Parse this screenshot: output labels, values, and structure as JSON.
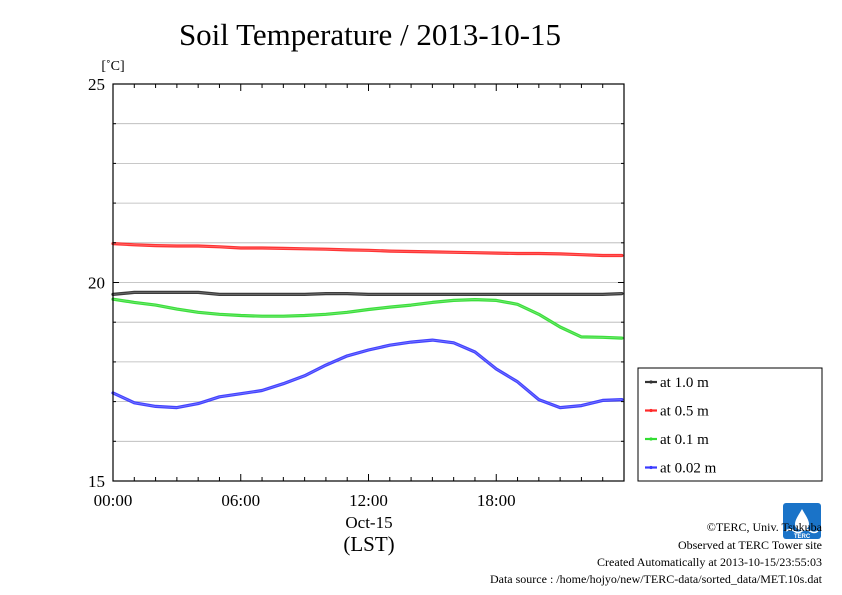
{
  "chart_data": {
    "type": "line",
    "title": "Soil Temperature / 2013-10-15",
    "ylabel": "[˚C]",
    "xlabel": "(LST)",
    "date_label": "Oct-15",
    "ylim": [
      15,
      25
    ],
    "yticks": [
      15,
      20,
      25
    ],
    "ytick_labels": [
      "15",
      "20",
      "25"
    ],
    "xlim_hours": [
      0,
      24
    ],
    "xticks": [
      "00:00",
      "06:00",
      "12:00",
      "18:00"
    ],
    "grid": true,
    "legend_position": "right-bottom",
    "series": [
      {
        "name": "at 1.0 m",
        "color": "#333333",
        "x": [
          0,
          1,
          2,
          3,
          4,
          5,
          6,
          7,
          8,
          9,
          10,
          11,
          12,
          13,
          14,
          15,
          16,
          17,
          18,
          19,
          20,
          21,
          22,
          23,
          23.9
        ],
        "y": [
          19.7,
          19.75,
          19.75,
          19.75,
          19.75,
          19.7,
          19.7,
          19.7,
          19.7,
          19.7,
          19.72,
          19.72,
          19.7,
          19.7,
          19.7,
          19.7,
          19.7,
          19.7,
          19.7,
          19.7,
          19.7,
          19.7,
          19.7,
          19.7,
          19.72
        ]
      },
      {
        "name": "at 0.5 m",
        "color": "#ff2a2a",
        "x": [
          0,
          1,
          2,
          3,
          4,
          5,
          6,
          7,
          8,
          9,
          10,
          11,
          12,
          13,
          14,
          15,
          16,
          17,
          18,
          19,
          20,
          21,
          22,
          23,
          23.9
        ],
        "y": [
          20.98,
          20.95,
          20.93,
          20.92,
          20.92,
          20.9,
          20.87,
          20.87,
          20.86,
          20.85,
          20.84,
          20.82,
          20.81,
          20.79,
          20.78,
          20.77,
          20.76,
          20.75,
          20.74,
          20.73,
          20.73,
          20.72,
          20.7,
          20.68,
          20.68
        ]
      },
      {
        "name": "at 0.1 m",
        "color": "#33dd33",
        "x": [
          0,
          1,
          2,
          3,
          4,
          5,
          6,
          7,
          8,
          9,
          10,
          11,
          12,
          13,
          14,
          15,
          16,
          17,
          18,
          19,
          20,
          21,
          22,
          23,
          23.9
        ],
        "y": [
          19.58,
          19.5,
          19.43,
          19.33,
          19.25,
          19.2,
          19.17,
          19.15,
          19.15,
          19.17,
          19.2,
          19.25,
          19.32,
          19.38,
          19.43,
          19.5,
          19.55,
          19.57,
          19.55,
          19.45,
          19.2,
          18.88,
          18.63,
          18.62,
          18.6
        ]
      },
      {
        "name": "at 0.02 m",
        "color": "#3a3aff",
        "x": [
          0,
          1,
          2,
          3,
          4,
          5,
          6,
          7,
          8,
          9,
          10,
          11,
          12,
          13,
          14,
          15,
          16,
          17,
          18,
          19,
          20,
          21,
          22,
          23,
          23.9
        ],
        "y": [
          17.22,
          16.97,
          16.88,
          16.85,
          16.95,
          17.12,
          17.2,
          17.28,
          17.45,
          17.65,
          17.92,
          18.15,
          18.3,
          18.42,
          18.5,
          18.55,
          18.48,
          18.25,
          17.82,
          17.5,
          17.05,
          16.85,
          16.9,
          17.03,
          17.05
        ]
      }
    ]
  },
  "credits": {
    "copyright": "©TERC, Univ. Tsukuba",
    "observed": "Observed at TERC Tower site",
    "created": "Created Automatically at 2013-10-15/23:55:03",
    "source": "Data source : /home/hojyo/new/TERC-data/sorted_data/MET.10s.dat"
  },
  "logo": {
    "name": "terc-logo-icon",
    "color": "#1a73c8",
    "text": "TERC"
  }
}
